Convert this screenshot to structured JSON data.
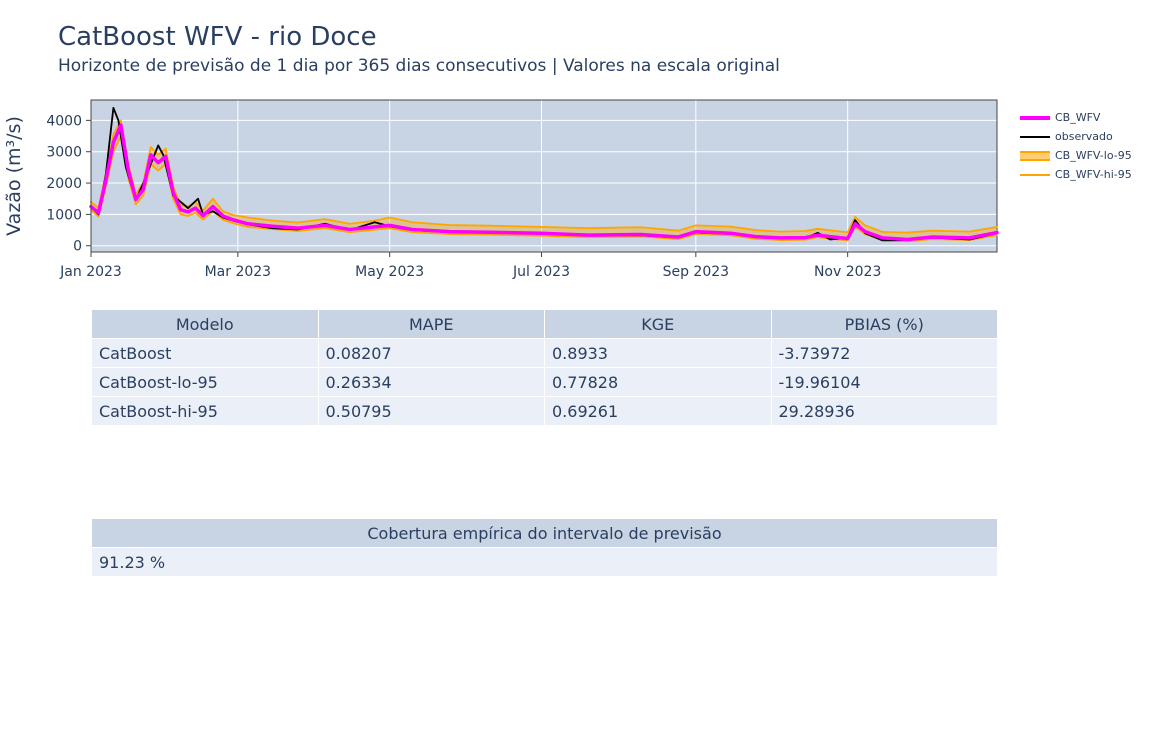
{
  "header": {
    "title": "CatBoost WFV - rio Doce",
    "subtitle": "Horizonte de previsão de 1 dia por 365 dias consecutivos | Valores na escala original"
  },
  "colors": {
    "plot_bg": "#c8d4e3",
    "grid": "#ffffff",
    "cb_wfv": "#ff00ff",
    "observado": "#000000",
    "interval": "#ffa500",
    "text": "#2a3f5f",
    "table_header": "#c8d4e3",
    "table_cell": "#ebf0f8"
  },
  "chart_data": {
    "type": "line",
    "title": "",
    "xlabel": "",
    "ylabel": "Vazão (m³/s)",
    "xlim": [
      "2023-01-01",
      "2023-12-31"
    ],
    "ylim": [
      -200,
      4650
    ],
    "x_ticks": [
      "2023-01-01",
      "2023-03-01",
      "2023-05-01",
      "2023-07-01",
      "2023-09-01",
      "2023-11-01"
    ],
    "x_tick_labels": [
      "Jan 2023",
      "Mar 2023",
      "May 2023",
      "Jul 2023",
      "Sep 2023",
      "Nov 2023"
    ],
    "y_ticks": [
      0,
      1000,
      2000,
      3000,
      4000
    ],
    "y_tick_labels": [
      "0",
      "1000",
      "2000",
      "3000",
      "4000"
    ],
    "grid": true,
    "legend_position": "right",
    "series": [
      {
        "name": "CB_WFV",
        "color": "#ff00ff",
        "width": 3.5,
        "x": [
          "2023-01-01",
          "2023-01-04",
          "2023-01-07",
          "2023-01-10",
          "2023-01-13",
          "2023-01-16",
          "2023-01-19",
          "2023-01-22",
          "2023-01-25",
          "2023-01-28",
          "2023-01-31",
          "2023-02-03",
          "2023-02-06",
          "2023-02-09",
          "2023-02-12",
          "2023-02-15",
          "2023-02-19",
          "2023-02-23",
          "2023-02-27",
          "2023-03-05",
          "2023-03-15",
          "2023-03-25",
          "2023-04-05",
          "2023-04-15",
          "2023-04-25",
          "2023-05-01",
          "2023-05-10",
          "2023-05-25",
          "2023-06-10",
          "2023-07-01",
          "2023-07-20",
          "2023-08-10",
          "2023-08-25",
          "2023-09-01",
          "2023-09-15",
          "2023-09-25",
          "2023-10-05",
          "2023-10-15",
          "2023-10-20",
          "2023-10-25",
          "2023-11-01",
          "2023-11-04",
          "2023-11-08",
          "2023-11-15",
          "2023-11-25",
          "2023-12-05",
          "2023-12-20",
          "2023-12-31"
        ],
        "y": [
          1250,
          1050,
          2100,
          3300,
          3850,
          2400,
          1480,
          1800,
          2900,
          2650,
          2850,
          1700,
          1150,
          1080,
          1200,
          960,
          1250,
          950,
          830,
          700,
          620,
          560,
          650,
          520,
          600,
          650,
          520,
          450,
          430,
          400,
          340,
          360,
          280,
          450,
          400,
          290,
          250,
          260,
          340,
          290,
          230,
          700,
          450,
          250,
          200,
          280,
          250,
          420
        ]
      },
      {
        "name": "observado",
        "color": "#000000",
        "width": 1.8,
        "x": [
          "2023-01-01",
          "2023-01-04",
          "2023-01-07",
          "2023-01-10",
          "2023-01-12",
          "2023-01-15",
          "2023-01-19",
          "2023-01-22",
          "2023-01-25",
          "2023-01-28",
          "2023-01-30",
          "2023-02-03",
          "2023-02-06",
          "2023-02-09",
          "2023-02-13",
          "2023-02-15",
          "2023-02-19",
          "2023-02-23",
          "2023-02-27",
          "2023-03-05",
          "2023-03-15",
          "2023-03-25",
          "2023-04-05",
          "2023-04-15",
          "2023-04-25",
          "2023-05-01",
          "2023-05-10",
          "2023-05-25",
          "2023-06-10",
          "2023-07-01",
          "2023-07-20",
          "2023-08-10",
          "2023-08-25",
          "2023-09-01",
          "2023-09-15",
          "2023-09-25",
          "2023-10-05",
          "2023-10-15",
          "2023-10-20",
          "2023-10-25",
          "2023-11-01",
          "2023-11-04",
          "2023-11-08",
          "2023-11-15",
          "2023-11-25",
          "2023-12-05",
          "2023-12-20",
          "2023-12-31"
        ],
        "y": [
          1250,
          1000,
          2300,
          4400,
          4000,
          2500,
          1450,
          2000,
          2600,
          3200,
          2900,
          1600,
          1400,
          1200,
          1500,
          1000,
          1100,
          900,
          800,
          680,
          560,
          520,
          700,
          500,
          750,
          620,
          500,
          430,
          420,
          380,
          330,
          330,
          260,
          420,
          380,
          280,
          230,
          240,
          410,
          200,
          250,
          820,
          400,
          170,
          180,
          260,
          200,
          400
        ]
      },
      {
        "name": "CB_WFV-lo-95",
        "color": "#ffa500",
        "width": 1.8,
        "x": [
          "2023-01-01",
          "2023-01-04",
          "2023-01-07",
          "2023-01-10",
          "2023-01-13",
          "2023-01-16",
          "2023-01-19",
          "2023-01-22",
          "2023-01-25",
          "2023-01-28",
          "2023-01-31",
          "2023-02-03",
          "2023-02-06",
          "2023-02-09",
          "2023-02-12",
          "2023-02-15",
          "2023-02-19",
          "2023-02-23",
          "2023-02-27",
          "2023-03-05",
          "2023-03-15",
          "2023-03-25",
          "2023-04-05",
          "2023-04-15",
          "2023-04-25",
          "2023-05-01",
          "2023-05-10",
          "2023-05-25",
          "2023-06-10",
          "2023-07-01",
          "2023-07-20",
          "2023-08-10",
          "2023-08-25",
          "2023-09-01",
          "2023-09-15",
          "2023-09-25",
          "2023-10-05",
          "2023-10-15",
          "2023-10-20",
          "2023-10-25",
          "2023-11-01",
          "2023-11-04",
          "2023-11-08",
          "2023-11-15",
          "2023-11-25",
          "2023-12-05",
          "2023-12-20",
          "2023-12-31"
        ],
        "y": [
          1150,
          930,
          1900,
          3000,
          3500,
          2150,
          1320,
          1600,
          2600,
          2400,
          2600,
          1500,
          1000,
          950,
          1050,
          830,
          1100,
          830,
          720,
          600,
          530,
          470,
          560,
          430,
          510,
          560,
          430,
          370,
          350,
          320,
          270,
          290,
          210,
          370,
          330,
          220,
          180,
          190,
          270,
          220,
          170,
          600,
          370,
          180,
          140,
          210,
          180,
          340
        ]
      },
      {
        "name": "CB_WFV-hi-95",
        "color": "#ffa500",
        "width": 1.8,
        "x": [
          "2023-01-01",
          "2023-01-04",
          "2023-01-07",
          "2023-01-10",
          "2023-01-13",
          "2023-01-16",
          "2023-01-19",
          "2023-01-22",
          "2023-01-25",
          "2023-01-28",
          "2023-01-31",
          "2023-02-03",
          "2023-02-06",
          "2023-02-09",
          "2023-02-12",
          "2023-02-15",
          "2023-02-19",
          "2023-02-23",
          "2023-02-27",
          "2023-03-05",
          "2023-03-15",
          "2023-03-25",
          "2023-04-05",
          "2023-04-15",
          "2023-04-25",
          "2023-05-01",
          "2023-05-10",
          "2023-05-25",
          "2023-06-10",
          "2023-07-01",
          "2023-07-20",
          "2023-08-10",
          "2023-08-25",
          "2023-09-01",
          "2023-09-15",
          "2023-09-25",
          "2023-10-05",
          "2023-10-15",
          "2023-10-20",
          "2023-10-25",
          "2023-11-01",
          "2023-11-04",
          "2023-11-08",
          "2023-11-15",
          "2023-11-25",
          "2023-12-05",
          "2023-12-20",
          "2023-12-31"
        ],
        "y": [
          1400,
          1200,
          2300,
          3550,
          4000,
          2600,
          1650,
          2000,
          3150,
          2900,
          3100,
          1900,
          1300,
          1250,
          1400,
          1120,
          1500,
          1100,
          980,
          900,
          800,
          740,
          850,
          700,
          800,
          900,
          750,
          660,
          640,
          600,
          560,
          590,
          480,
          650,
          610,
          500,
          450,
          470,
          540,
          490,
          430,
          920,
          650,
          440,
          420,
          480,
          450,
          600
        ]
      }
    ]
  },
  "metrics_table": {
    "headers": [
      "Modelo",
      "MAPE",
      "KGE",
      "PBIAS (%)"
    ],
    "rows": [
      [
        "CatBoost",
        "0.08207",
        "0.8933",
        "-3.73972"
      ],
      [
        "CatBoost-lo-95",
        "0.26334",
        "0.77828",
        "-19.96104"
      ],
      [
        "CatBoost-hi-95",
        "0.50795",
        "0.69261",
        "29.28936"
      ]
    ]
  },
  "coverage_table": {
    "header": "Cobertura empírica do intervalo de previsão",
    "value": "91.23 %"
  }
}
